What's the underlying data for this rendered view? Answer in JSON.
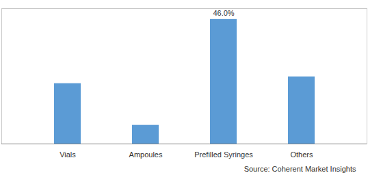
{
  "chart_data": {
    "type": "bar",
    "categories": [
      "Vials",
      "Ampoules",
      "Prefilled Syringes",
      "Others"
    ],
    "values": [
      22.3,
      6.9,
      46.0,
      24.8
    ],
    "value_labels": [
      null,
      null,
      "46.0%",
      null
    ],
    "color": "#5b9bd5",
    "ylim": [
      0,
      50
    ],
    "tick_labels": "x",
    "caption": "Source: Coherent Market Insights"
  }
}
